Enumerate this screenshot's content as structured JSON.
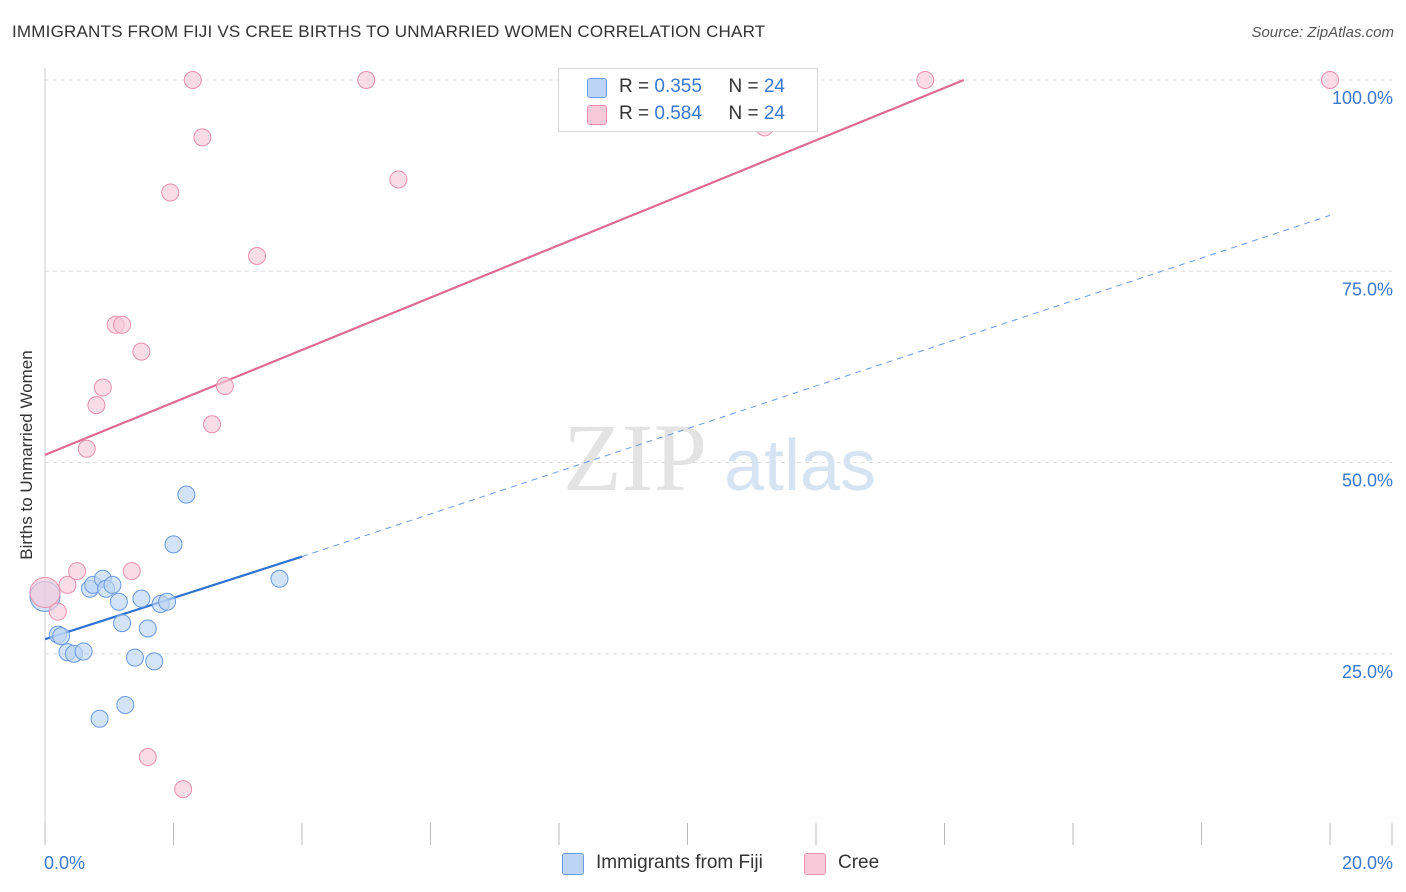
{
  "title": "IMMIGRANTS FROM FIJI VS CREE BIRTHS TO UNMARRIED WOMEN CORRELATION CHART",
  "source": "Source: ZipAtlas.com",
  "watermark": {
    "zip": "ZIP",
    "atlas": "atlas"
  },
  "colors": {
    "fiji_fill": "#bcd4f5",
    "fiji_stroke": "#6a9be0",
    "fiji_line": "#2f72d2",
    "cree_fill": "#f8c9d8",
    "cree_stroke": "#e890ad",
    "cree_line": "#e06a92",
    "grid": "#dedede",
    "axis_text": "#3a78d0"
  },
  "legend": {
    "fiji": {
      "r_label": "R = ",
      "r_value": "0.355",
      "n_label": "N = ",
      "n_value": "24"
    },
    "cree": {
      "r_label": "R = ",
      "r_value": "0.584",
      "n_label": "N = ",
      "n_value": "24"
    }
  },
  "bottom_legend": {
    "fiji": "Immigrants from Fiji",
    "cree": "Cree"
  },
  "chart_data": {
    "type": "scatter",
    "title": "IMMIGRANTS FROM FIJI VS CREE BIRTHS TO UNMARRIED WOMEN CORRELATION CHART",
    "xlabel": "",
    "ylabel": "Births to Unmarried Women",
    "xlim": [
      0,
      20
    ],
    "ylim": [
      0,
      100
    ],
    "x_tick_labels": [
      "0.0%",
      "20.0%"
    ],
    "y_tick_labels": [
      "25.0%",
      "50.0%",
      "75.0%",
      "100.0%"
    ],
    "y_ticks": [
      25,
      50,
      75,
      100
    ],
    "series": [
      {
        "name": "Immigrants from Fiji",
        "r": 0.355,
        "n": 24,
        "points": [
          [
            0.0,
            32.5
          ],
          [
            0.2,
            27.5
          ],
          [
            0.25,
            27.3
          ],
          [
            0.35,
            25.2
          ],
          [
            0.45,
            25.0
          ],
          [
            0.6,
            25.3
          ],
          [
            0.7,
            33.5
          ],
          [
            0.75,
            34.0
          ],
          [
            0.9,
            34.8
          ],
          [
            0.85,
            16.5
          ],
          [
            0.95,
            33.5
          ],
          [
            1.05,
            34.0
          ],
          [
            1.15,
            31.8
          ],
          [
            1.2,
            29.0
          ],
          [
            1.25,
            18.3
          ],
          [
            1.4,
            24.5
          ],
          [
            1.5,
            32.2
          ],
          [
            1.6,
            28.3
          ],
          [
            1.7,
            24.0
          ],
          [
            1.8,
            31.5
          ],
          [
            1.9,
            31.8
          ],
          [
            2.0,
            39.3
          ],
          [
            2.2,
            45.8
          ],
          [
            3.65,
            34.8
          ]
        ],
        "trend": {
          "x_start": 0.0,
          "y_start": 26.9,
          "x_solid_end": 4.0,
          "y_solid_end": 37.7,
          "x_dash_end": 20.0,
          "y_dash_end": 82.3
        }
      },
      {
        "name": "Cree",
        "r": 0.584,
        "n": 24,
        "points": [
          [
            0.0,
            33.0
          ],
          [
            0.2,
            30.5
          ],
          [
            0.35,
            34.0
          ],
          [
            0.5,
            35.8
          ],
          [
            0.65,
            51.8
          ],
          [
            0.8,
            57.5
          ],
          [
            0.9,
            59.8
          ],
          [
            1.1,
            68.0
          ],
          [
            1.2,
            68.0
          ],
          [
            1.35,
            35.8
          ],
          [
            1.5,
            64.5
          ],
          [
            1.6,
            11.5
          ],
          [
            1.95,
            85.3
          ],
          [
            2.15,
            7.3
          ],
          [
            2.3,
            100.0
          ],
          [
            2.45,
            92.5
          ],
          [
            2.6,
            55.0
          ],
          [
            2.8,
            60.0
          ],
          [
            3.3,
            77.0
          ],
          [
            5.0,
            100.0
          ],
          [
            5.5,
            87.0
          ],
          [
            11.2,
            93.8
          ],
          [
            13.7,
            100.0
          ],
          [
            20.0,
            100.0
          ]
        ],
        "trend": {
          "x_start": 0.0,
          "y_start": 51.0,
          "x_end": 14.3,
          "y_end": 100.0
        }
      }
    ]
  }
}
